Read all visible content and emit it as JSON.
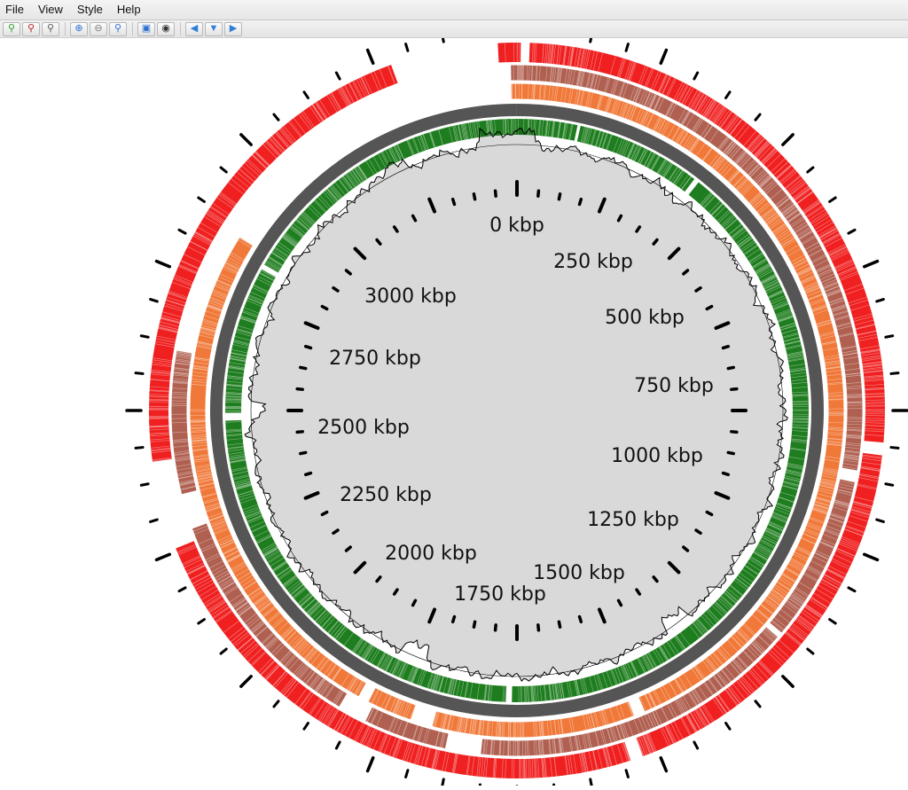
{
  "menu": [
    "File",
    "View",
    "Style",
    "Help"
  ],
  "toolbar": [
    {
      "name": "zoom-in-region-button",
      "icon": "magnifier-plus-green-icon"
    },
    {
      "name": "zoom-out-region-button",
      "icon": "magnifier-minus-red-icon"
    },
    {
      "name": "zoom-region-button",
      "icon": "magnifier-icon"
    },
    {
      "name": "zoom-in-button",
      "icon": "zoom-in-icon"
    },
    {
      "name": "zoom-out-button",
      "icon": "zoom-out-icon"
    },
    {
      "name": "zoom-reset-button",
      "icon": "zoom-reset-icon"
    },
    {
      "name": "fit-to-window-button",
      "icon": "fit-window-icon"
    },
    {
      "name": "show-hide-button",
      "icon": "eye-icon"
    },
    {
      "name": "rotate-left-button",
      "icon": "arrow-left-icon"
    },
    {
      "name": "move-down-button",
      "icon": "arrow-down-icon"
    },
    {
      "name": "rotate-right-button",
      "icon": "arrow-right-icon"
    }
  ],
  "genome_map": {
    "tick_labels": [
      "0 kbp",
      "250 kbp",
      "500 kbp",
      "750 kbp",
      "1000 kbp",
      "1250 kbp",
      "1500 kbp",
      "1750 kbp",
      "2000 kbp",
      "2250 kbp",
      "2500 kbp",
      "2750 kbp",
      "3000 kbp"
    ],
    "rings": [
      {
        "name": "outer-red-ring",
        "color": "#f02020"
      },
      {
        "name": "brown-ring",
        "color": "#b06050"
      },
      {
        "name": "orange-ring",
        "color": "#f07838"
      },
      {
        "name": "backbone-ring",
        "color": "#555555"
      },
      {
        "name": "green-ring",
        "color": "#1e7d1e"
      },
      {
        "name": "gc-content-plot",
        "color": "#000000"
      }
    ]
  }
}
